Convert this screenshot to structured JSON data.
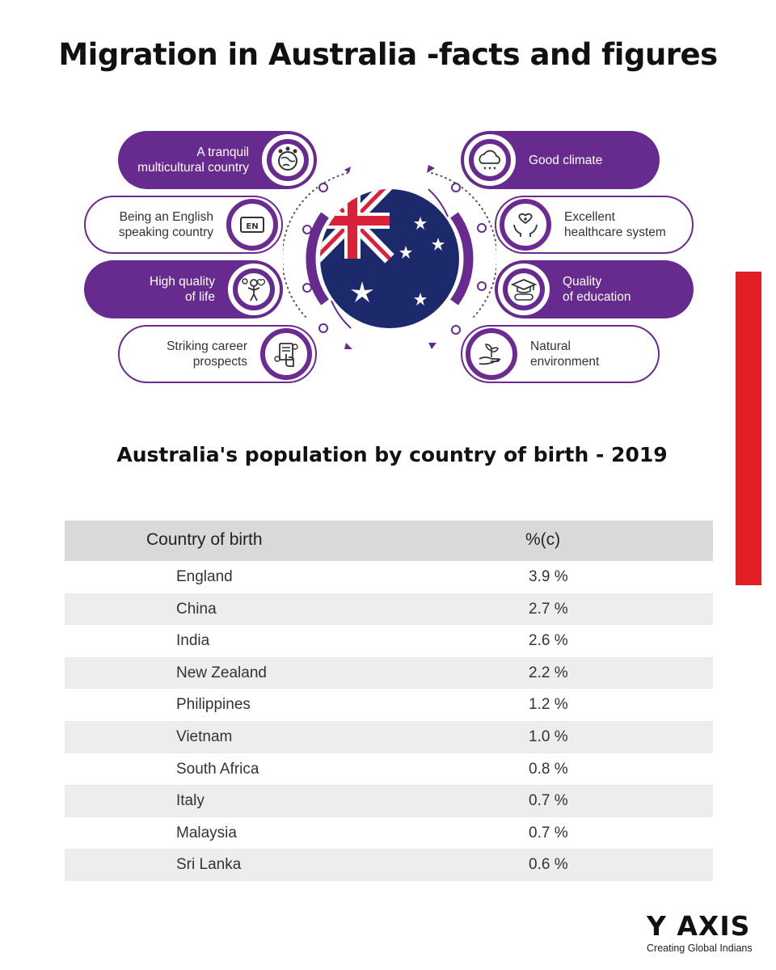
{
  "title": "Migration in Australia -facts and figures",
  "features_left": [
    {
      "label_line1": "A tranquil",
      "label_line2": "multicultural country",
      "icon": "globe-people-icon",
      "style": "filled"
    },
    {
      "label_line1": "Being an English",
      "label_line2": "speaking country",
      "icon": "en-language-icon",
      "style": "outline"
    },
    {
      "label_line1": "High quality",
      "label_line2": "of life",
      "icon": "happy-person-icon",
      "style": "filled"
    },
    {
      "label_line1": "Striking career",
      "label_line2": "prospects",
      "icon": "career-touch-icon",
      "style": "outline"
    }
  ],
  "features_right": [
    {
      "label_line1": "Good climate",
      "label_line2": "",
      "icon": "weather-cloud-icon",
      "style": "filled"
    },
    {
      "label_line1": "Excellent",
      "label_line2": "healthcare system",
      "icon": "healthcare-hands-icon",
      "style": "outline"
    },
    {
      "label_line1": "Quality",
      "label_line2": "of education",
      "icon": "graduation-cap-icon",
      "style": "filled"
    },
    {
      "label_line1": "Natural",
      "label_line2": "environment",
      "icon": "plant-hand-icon",
      "style": "outline"
    }
  ],
  "en_badge": "EN",
  "subtitle": "Australia's population by country of birth - 2019",
  "table": {
    "headers": [
      "Country of birth",
      "%(c)"
    ],
    "rows": [
      [
        "England",
        "3.9 %"
      ],
      [
        "China",
        "2.7 %"
      ],
      [
        "India",
        "2.6 %"
      ],
      [
        "New Zealand",
        "2.2 %"
      ],
      [
        "Philippines",
        "1.2 %"
      ],
      [
        "Vietnam",
        "1.0 %"
      ],
      [
        "South Africa",
        "0.8 %"
      ],
      [
        "Italy",
        "0.7 %"
      ],
      [
        "Malaysia",
        "0.7 %"
      ],
      [
        "Sri Lanka",
        "0.6 %"
      ]
    ]
  },
  "logo": {
    "name": "Y AXIS",
    "tagline": "Creating Global Indians"
  },
  "colors": {
    "purple": "#672a8e",
    "red_accent": "#e31e24",
    "flag_blue": "#1c2a6b",
    "flag_red": "#d9213a"
  }
}
